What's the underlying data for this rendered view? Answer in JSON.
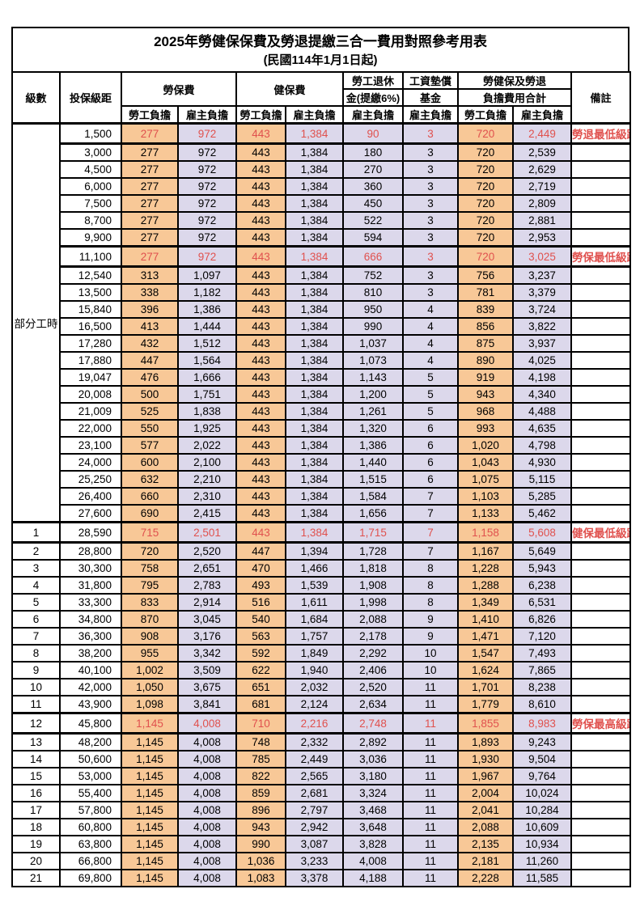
{
  "title": "2025年勞健保保費及勞退提繳三合一費用對照參考用表",
  "subtitle": "(民國114年1月1日起)",
  "colors": {
    "employee_bg": "#F8C897",
    "employer_bg": "#DCD8EB",
    "highlight_text": "#E0514E",
    "border": "#000000"
  },
  "header": {
    "level": "級數",
    "bracket": "投保級距",
    "labor_insurance": "勞保費",
    "health_insurance": "健保費",
    "pension_line1": "勞工退休",
    "pension_line2": "金(提繳6%)",
    "wage_fund_line1": "工資墊償",
    "wage_fund_line2": "基金",
    "total_line1": "勞健保及勞退",
    "total_line2": "負擔費用合計",
    "remark": "備註",
    "employee": "勞工負擔",
    "employer": "雇主負擔"
  },
  "table": {
    "group_label": "部分工時",
    "group_rowspan": 23,
    "rows": [
      {
        "bracket": "1,500",
        "li_e": "277",
        "li_r": "972",
        "hi_e": "443",
        "hi_r": "1,384",
        "pen": "90",
        "fund": "3",
        "tot_e": "720",
        "tot_r": "2,449",
        "remark": "勞退最低級距",
        "red": true
      },
      {
        "bracket": "3,000",
        "li_e": "277",
        "li_r": "972",
        "hi_e": "443",
        "hi_r": "1,384",
        "pen": "180",
        "fund": "3",
        "tot_e": "720",
        "tot_r": "2,539",
        "remark": ""
      },
      {
        "bracket": "4,500",
        "li_e": "277",
        "li_r": "972",
        "hi_e": "443",
        "hi_r": "1,384",
        "pen": "270",
        "fund": "3",
        "tot_e": "720",
        "tot_r": "2,629",
        "remark": ""
      },
      {
        "bracket": "6,000",
        "li_e": "277",
        "li_r": "972",
        "hi_e": "443",
        "hi_r": "1,384",
        "pen": "360",
        "fund": "3",
        "tot_e": "720",
        "tot_r": "2,719",
        "remark": ""
      },
      {
        "bracket": "7,500",
        "li_e": "277",
        "li_r": "972",
        "hi_e": "443",
        "hi_r": "1,384",
        "pen": "450",
        "fund": "3",
        "tot_e": "720",
        "tot_r": "2,809",
        "remark": ""
      },
      {
        "bracket": "8,700",
        "li_e": "277",
        "li_r": "972",
        "hi_e": "443",
        "hi_r": "1,384",
        "pen": "522",
        "fund": "3",
        "tot_e": "720",
        "tot_r": "2,881",
        "remark": ""
      },
      {
        "bracket": "9,900",
        "li_e": "277",
        "li_r": "972",
        "hi_e": "443",
        "hi_r": "1,384",
        "pen": "594",
        "fund": "3",
        "tot_e": "720",
        "tot_r": "2,953",
        "remark": ""
      },
      {
        "bracket": "11,100",
        "li_e": "277",
        "li_r": "972",
        "hi_e": "443",
        "hi_r": "1,384",
        "pen": "666",
        "fund": "3",
        "tot_e": "720",
        "tot_r": "3,025",
        "remark": "勞保最低級距",
        "red": true
      },
      {
        "bracket": "12,540",
        "li_e": "313",
        "li_r": "1,097",
        "hi_e": "443",
        "hi_r": "1,384",
        "pen": "752",
        "fund": "3",
        "tot_e": "756",
        "tot_r": "3,237",
        "remark": ""
      },
      {
        "bracket": "13,500",
        "li_e": "338",
        "li_r": "1,182",
        "hi_e": "443",
        "hi_r": "1,384",
        "pen": "810",
        "fund": "3",
        "tot_e": "781",
        "tot_r": "3,379",
        "remark": ""
      },
      {
        "bracket": "15,840",
        "li_e": "396",
        "li_r": "1,386",
        "hi_e": "443",
        "hi_r": "1,384",
        "pen": "950",
        "fund": "4",
        "tot_e": "839",
        "tot_r": "3,724",
        "remark": ""
      },
      {
        "bracket": "16,500",
        "li_e": "413",
        "li_r": "1,444",
        "hi_e": "443",
        "hi_r": "1,384",
        "pen": "990",
        "fund": "4",
        "tot_e": "856",
        "tot_r": "3,822",
        "remark": ""
      },
      {
        "bracket": "17,280",
        "li_e": "432",
        "li_r": "1,512",
        "hi_e": "443",
        "hi_r": "1,384",
        "pen": "1,037",
        "fund": "4",
        "tot_e": "875",
        "tot_r": "3,937",
        "remark": ""
      },
      {
        "bracket": "17,880",
        "li_e": "447",
        "li_r": "1,564",
        "hi_e": "443",
        "hi_r": "1,384",
        "pen": "1,073",
        "fund": "4",
        "tot_e": "890",
        "tot_r": "4,025",
        "remark": ""
      },
      {
        "bracket": "19,047",
        "li_e": "476",
        "li_r": "1,666",
        "hi_e": "443",
        "hi_r": "1,384",
        "pen": "1,143",
        "fund": "5",
        "tot_e": "919",
        "tot_r": "4,198",
        "remark": ""
      },
      {
        "bracket": "20,008",
        "li_e": "500",
        "li_r": "1,751",
        "hi_e": "443",
        "hi_r": "1,384",
        "pen": "1,200",
        "fund": "5",
        "tot_e": "943",
        "tot_r": "4,340",
        "remark": ""
      },
      {
        "bracket": "21,009",
        "li_e": "525",
        "li_r": "1,838",
        "hi_e": "443",
        "hi_r": "1,384",
        "pen": "1,261",
        "fund": "5",
        "tot_e": "968",
        "tot_r": "4,488",
        "remark": ""
      },
      {
        "bracket": "22,000",
        "li_e": "550",
        "li_r": "1,925",
        "hi_e": "443",
        "hi_r": "1,384",
        "pen": "1,320",
        "fund": "6",
        "tot_e": "993",
        "tot_r": "4,635",
        "remark": ""
      },
      {
        "bracket": "23,100",
        "li_e": "577",
        "li_r": "2,022",
        "hi_e": "443",
        "hi_r": "1,384",
        "pen": "1,386",
        "fund": "6",
        "tot_e": "1,020",
        "tot_r": "4,798",
        "remark": ""
      },
      {
        "bracket": "24,000",
        "li_e": "600",
        "li_r": "2,100",
        "hi_e": "443",
        "hi_r": "1,384",
        "pen": "1,440",
        "fund": "6",
        "tot_e": "1,043",
        "tot_r": "4,930",
        "remark": ""
      },
      {
        "bracket": "25,250",
        "li_e": "632",
        "li_r": "2,210",
        "hi_e": "443",
        "hi_r": "1,384",
        "pen": "1,515",
        "fund": "6",
        "tot_e": "1,075",
        "tot_r": "5,115",
        "remark": ""
      },
      {
        "bracket": "26,400",
        "li_e": "660",
        "li_r": "2,310",
        "hi_e": "443",
        "hi_r": "1,384",
        "pen": "1,584",
        "fund": "7",
        "tot_e": "1,103",
        "tot_r": "5,285",
        "remark": ""
      },
      {
        "bracket": "27,600",
        "li_e": "690",
        "li_r": "2,415",
        "hi_e": "443",
        "hi_r": "1,384",
        "pen": "1,656",
        "fund": "7",
        "tot_e": "1,133",
        "tot_r": "5,462",
        "remark": ""
      },
      {
        "level": "1",
        "bracket": "28,590",
        "li_e": "715",
        "li_r": "2,501",
        "hi_e": "443",
        "hi_r": "1,384",
        "pen": "1,715",
        "fund": "7",
        "tot_e": "1,158",
        "tot_r": "5,608",
        "remark": "健保最低級距",
        "red": true
      },
      {
        "level": "2",
        "bracket": "28,800",
        "li_e": "720",
        "li_r": "2,520",
        "hi_e": "447",
        "hi_r": "1,394",
        "pen": "1,728",
        "fund": "7",
        "tot_e": "1,167",
        "tot_r": "5,649",
        "remark": ""
      },
      {
        "level": "3",
        "bracket": "30,300",
        "li_e": "758",
        "li_r": "2,651",
        "hi_e": "470",
        "hi_r": "1,466",
        "pen": "1,818",
        "fund": "8",
        "tot_e": "1,228",
        "tot_r": "5,943",
        "remark": ""
      },
      {
        "level": "4",
        "bracket": "31,800",
        "li_e": "795",
        "li_r": "2,783",
        "hi_e": "493",
        "hi_r": "1,539",
        "pen": "1,908",
        "fund": "8",
        "tot_e": "1,288",
        "tot_r": "6,238",
        "remark": ""
      },
      {
        "level": "5",
        "bracket": "33,300",
        "li_e": "833",
        "li_r": "2,914",
        "hi_e": "516",
        "hi_r": "1,611",
        "pen": "1,998",
        "fund": "8",
        "tot_e": "1,349",
        "tot_r": "6,531",
        "remark": ""
      },
      {
        "level": "6",
        "bracket": "34,800",
        "li_e": "870",
        "li_r": "3,045",
        "hi_e": "540",
        "hi_r": "1,684",
        "pen": "2,088",
        "fund": "9",
        "tot_e": "1,410",
        "tot_r": "6,826",
        "remark": ""
      },
      {
        "level": "7",
        "bracket": "36,300",
        "li_e": "908",
        "li_r": "3,176",
        "hi_e": "563",
        "hi_r": "1,757",
        "pen": "2,178",
        "fund": "9",
        "tot_e": "1,471",
        "tot_r": "7,120",
        "remark": ""
      },
      {
        "level": "8",
        "bracket": "38,200",
        "li_e": "955",
        "li_r": "3,342",
        "hi_e": "592",
        "hi_r": "1,849",
        "pen": "2,292",
        "fund": "10",
        "tot_e": "1,547",
        "tot_r": "7,493",
        "remark": ""
      },
      {
        "level": "9",
        "bracket": "40,100",
        "li_e": "1,002",
        "li_r": "3,509",
        "hi_e": "622",
        "hi_r": "1,940",
        "pen": "2,406",
        "fund": "10",
        "tot_e": "1,624",
        "tot_r": "7,865",
        "remark": ""
      },
      {
        "level": "10",
        "bracket": "42,000",
        "li_e": "1,050",
        "li_r": "3,675",
        "hi_e": "651",
        "hi_r": "2,032",
        "pen": "2,520",
        "fund": "11",
        "tot_e": "1,701",
        "tot_r": "8,238",
        "remark": ""
      },
      {
        "level": "11",
        "bracket": "43,900",
        "li_e": "1,098",
        "li_r": "3,841",
        "hi_e": "681",
        "hi_r": "2,124",
        "pen": "2,634",
        "fund": "11",
        "tot_e": "1,779",
        "tot_r": "8,610",
        "remark": ""
      },
      {
        "level": "12",
        "bracket": "45,800",
        "li_e": "1,145",
        "li_r": "4,008",
        "hi_e": "710",
        "hi_r": "2,216",
        "pen": "2,748",
        "fund": "11",
        "tot_e": "1,855",
        "tot_r": "8,983",
        "remark": "勞保最高級距",
        "red": true
      },
      {
        "level": "13",
        "bracket": "48,200",
        "li_e": "1,145",
        "li_r": "4,008",
        "hi_e": "748",
        "hi_r": "2,332",
        "pen": "2,892",
        "fund": "11",
        "tot_e": "1,893",
        "tot_r": "9,243",
        "remark": ""
      },
      {
        "level": "14",
        "bracket": "50,600",
        "li_e": "1,145",
        "li_r": "4,008",
        "hi_e": "785",
        "hi_r": "2,449",
        "pen": "3,036",
        "fund": "11",
        "tot_e": "1,930",
        "tot_r": "9,504",
        "remark": ""
      },
      {
        "level": "15",
        "bracket": "53,000",
        "li_e": "1,145",
        "li_r": "4,008",
        "hi_e": "822",
        "hi_r": "2,565",
        "pen": "3,180",
        "fund": "11",
        "tot_e": "1,967",
        "tot_r": "9,764",
        "remark": ""
      },
      {
        "level": "16",
        "bracket": "55,400",
        "li_e": "1,145",
        "li_r": "4,008",
        "hi_e": "859",
        "hi_r": "2,681",
        "pen": "3,324",
        "fund": "11",
        "tot_e": "2,004",
        "tot_r": "10,024",
        "remark": ""
      },
      {
        "level": "17",
        "bracket": "57,800",
        "li_e": "1,145",
        "li_r": "4,008",
        "hi_e": "896",
        "hi_r": "2,797",
        "pen": "3,468",
        "fund": "11",
        "tot_e": "2,041",
        "tot_r": "10,284",
        "remark": ""
      },
      {
        "level": "18",
        "bracket": "60,800",
        "li_e": "1,145",
        "li_r": "4,008",
        "hi_e": "943",
        "hi_r": "2,942",
        "pen": "3,648",
        "fund": "11",
        "tot_e": "2,088",
        "tot_r": "10,609",
        "remark": ""
      },
      {
        "level": "19",
        "bracket": "63,800",
        "li_e": "1,145",
        "li_r": "4,008",
        "hi_e": "990",
        "hi_r": "3,087",
        "pen": "3,828",
        "fund": "11",
        "tot_e": "2,135",
        "tot_r": "10,934",
        "remark": ""
      },
      {
        "level": "20",
        "bracket": "66,800",
        "li_e": "1,145",
        "li_r": "4,008",
        "hi_e": "1,036",
        "hi_r": "3,233",
        "pen": "4,008",
        "fund": "11",
        "tot_e": "2,181",
        "tot_r": "11,260",
        "remark": ""
      },
      {
        "level": "21",
        "bracket": "69,800",
        "li_e": "1,145",
        "li_r": "4,008",
        "hi_e": "1,083",
        "hi_r": "3,378",
        "pen": "4,188",
        "fund": "11",
        "tot_e": "2,228",
        "tot_r": "11,585",
        "remark": ""
      }
    ]
  }
}
